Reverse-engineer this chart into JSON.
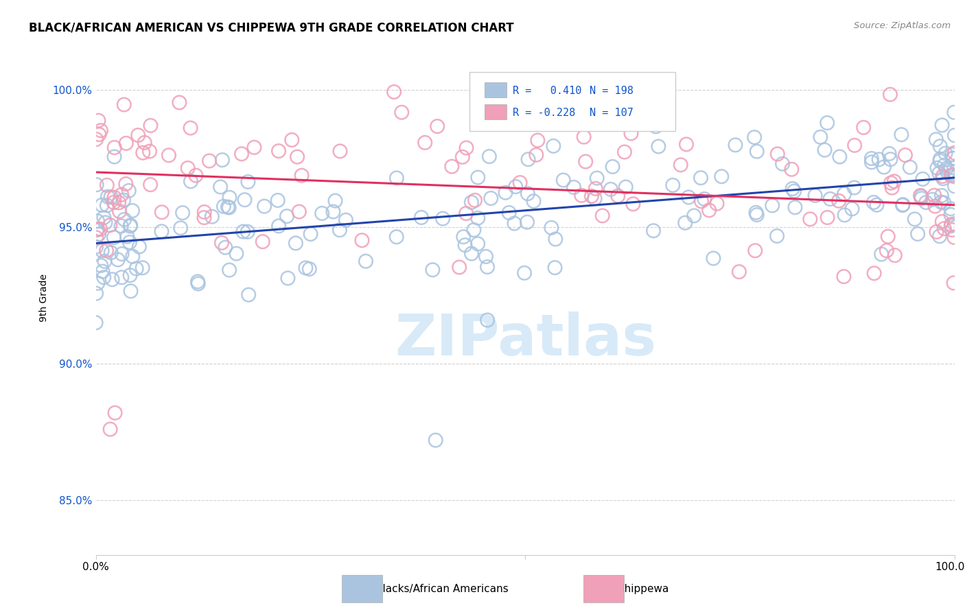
{
  "title": "BLACK/AFRICAN AMERICAN VS CHIPPEWA 9TH GRADE CORRELATION CHART",
  "source": "Source: ZipAtlas.com",
  "ylabel": "9th Grade",
  "y_ticks": [
    0.85,
    0.9,
    0.95,
    1.0
  ],
  "y_tick_labels": [
    "85.0%",
    "90.0%",
    "95.0%",
    "100.0%"
  ],
  "x_range": [
    0.0,
    1.0
  ],
  "y_range": [
    0.83,
    1.018
  ],
  "blue_R": 0.41,
  "blue_N": 198,
  "pink_R": -0.228,
  "pink_N": 107,
  "blue_color": "#aac4e0",
  "pink_color": "#f0a0b8",
  "blue_line_color": "#2244aa",
  "pink_line_color": "#e03060",
  "legend_color": "#1155cc",
  "watermark_color": "#d8eaf8",
  "blue_trend_y0": 0.944,
  "blue_trend_y1": 0.968,
  "pink_trend_y0": 0.97,
  "pink_trend_y1": 0.958
}
